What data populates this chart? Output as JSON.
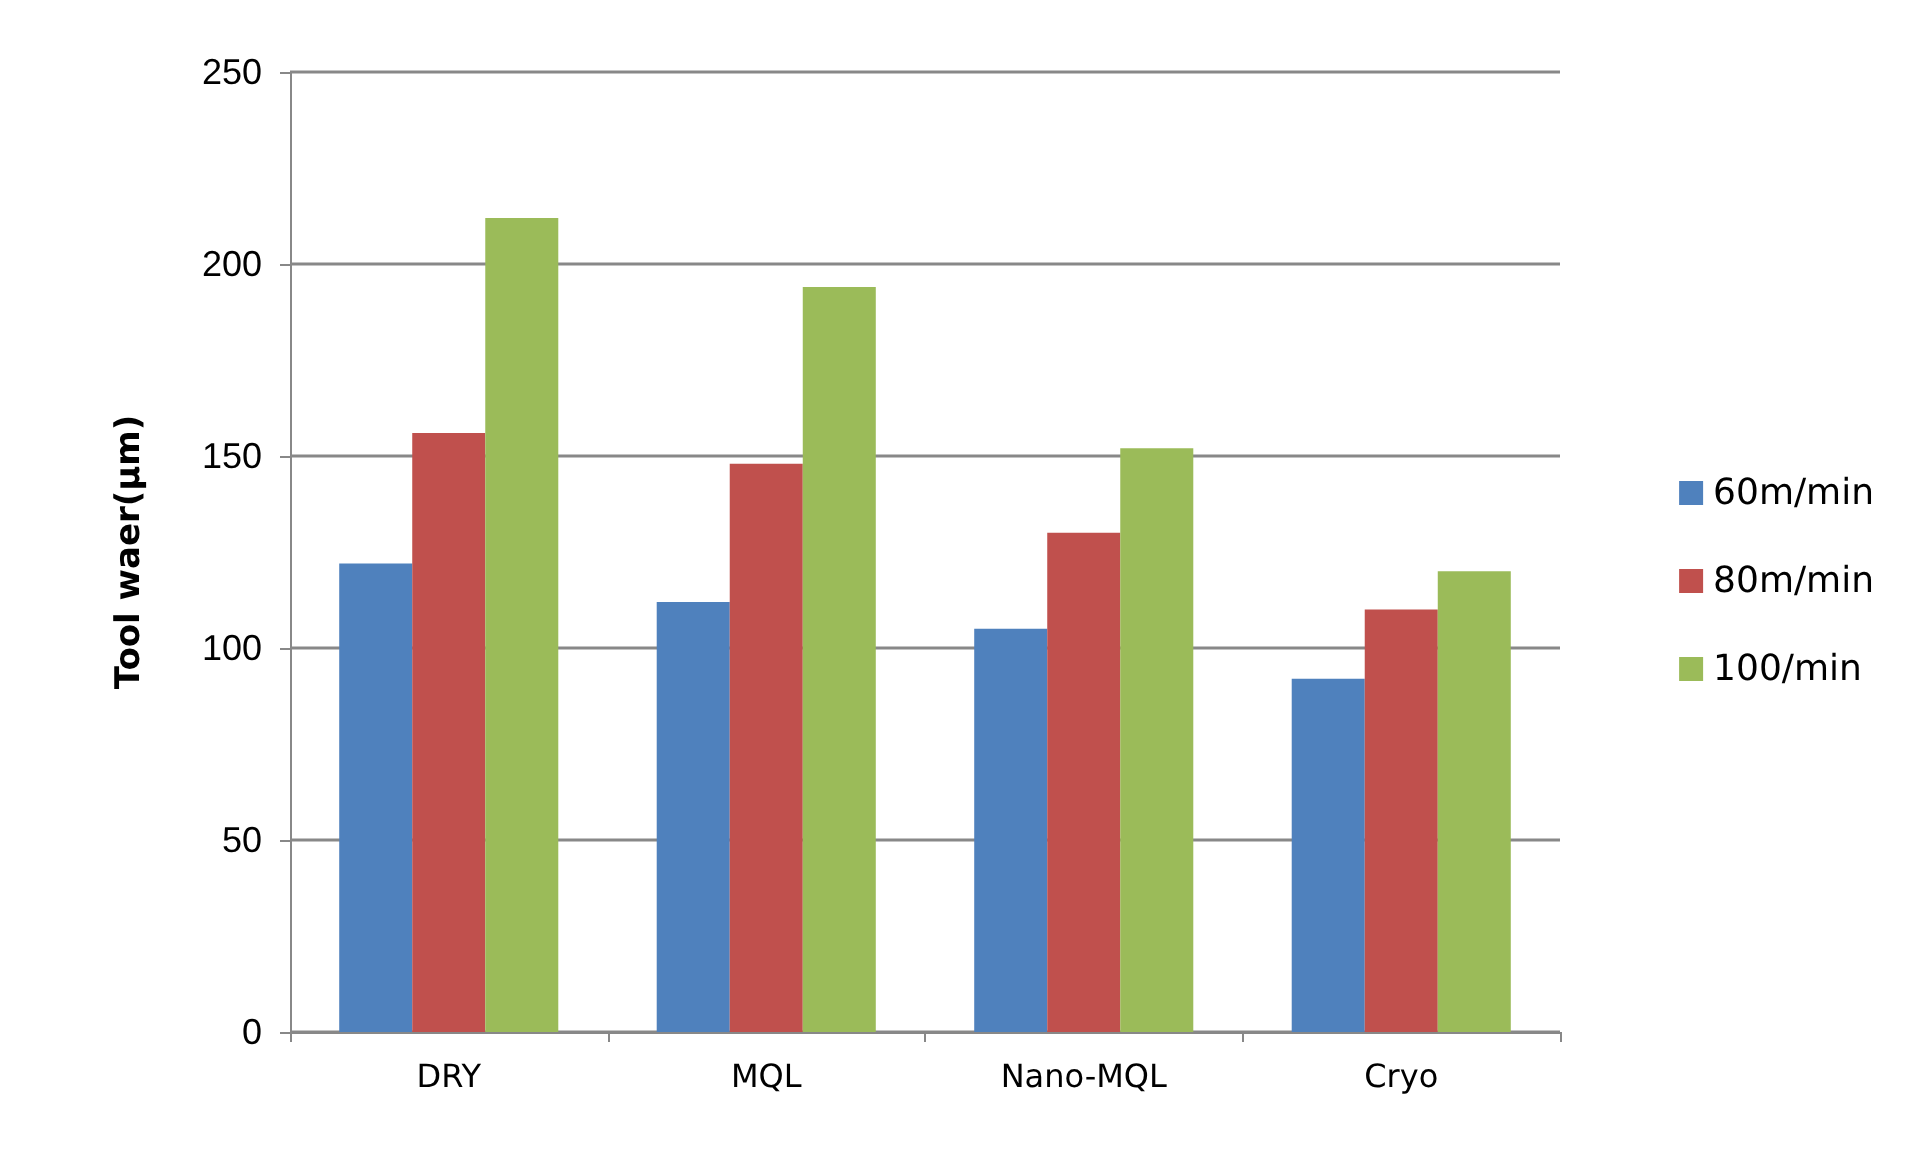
{
  "chart_data": {
    "type": "bar",
    "ylabel": "Tool waer(µm)",
    "categories": [
      "DRY",
      "MQL",
      "Nano-MQL",
      "Cryo"
    ],
    "series": [
      {
        "name": "60m/min",
        "color": "#4f81bd",
        "values": [
          122,
          112,
          105,
          92
        ]
      },
      {
        "name": "80m/min",
        "color": "#c0504d",
        "values": [
          156,
          148,
          130,
          110
        ]
      },
      {
        "name": "100/min",
        "color": "#9bbb59",
        "values": [
          212,
          194,
          152,
          120
        ]
      }
    ],
    "ylim": [
      0,
      250
    ],
    "yticks": [
      0,
      50,
      100,
      150,
      200,
      250
    ],
    "grid": "y",
    "legend": "right"
  }
}
